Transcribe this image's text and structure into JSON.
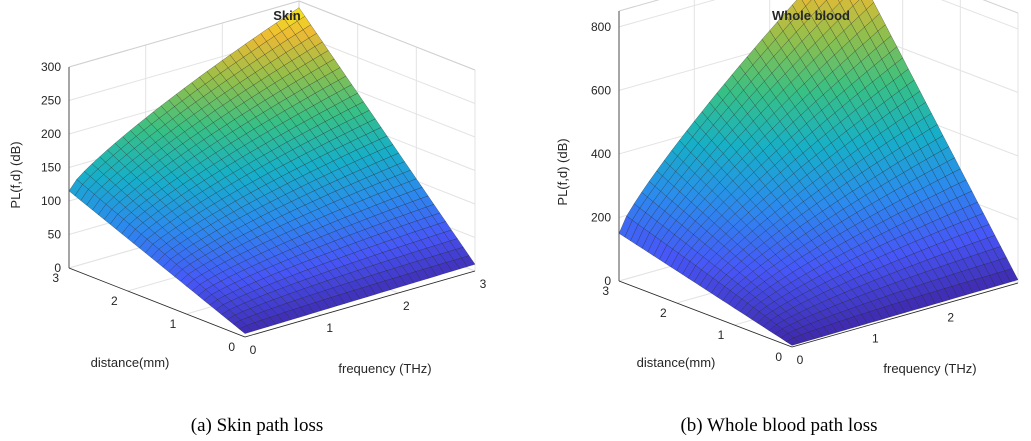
{
  "chart_data": [
    {
      "type": "surface",
      "title": "Skin",
      "caption": "(a) Skin path loss",
      "xlabel": "frequency (THz)",
      "ylabel": "distance(mm)",
      "zlabel": "PL(f,d) (dB)",
      "xlim": [
        0,
        3
      ],
      "ylim": [
        0,
        3
      ],
      "zlim": [
        0,
        300
      ],
      "xticks": [
        "0",
        "1",
        "2",
        "3"
      ],
      "yticks": [
        "0",
        "1",
        "2",
        "3"
      ],
      "zticks": [
        "0",
        "50",
        "100",
        "150",
        "200",
        "250",
        "300"
      ],
      "grid": true,
      "colormap": "parula",
      "x": [
        0,
        3
      ],
      "y": [
        0,
        3
      ],
      "corner_values": {
        "f0_d0": 5,
        "f3_d0": 10,
        "f0_d3": 115,
        "f3_d3": 290
      }
    },
    {
      "type": "surface",
      "title": "Whole blood",
      "caption": "(b) Whole blood path loss",
      "xlabel": "frequency (THz)",
      "ylabel": "distance(mm)",
      "zlabel": "PL(f,d) (dB)",
      "xlim": [
        0,
        3
      ],
      "ylim": [
        0,
        3
      ],
      "zlim": [
        0,
        850
      ],
      "xticks": [
        "0",
        "1",
        "2"
      ],
      "yticks": [
        "0",
        "1",
        "2",
        "3"
      ],
      "zticks": [
        "0",
        "200",
        "400",
        "600",
        "800"
      ],
      "grid": true,
      "colormap": "parula",
      "x": [
        0,
        3
      ],
      "y": [
        0,
        3
      ],
      "corner_values": {
        "f0_d0": 5,
        "f3_d0": 10,
        "f0_d3": 150,
        "f3_d3": 850
      }
    }
  ]
}
